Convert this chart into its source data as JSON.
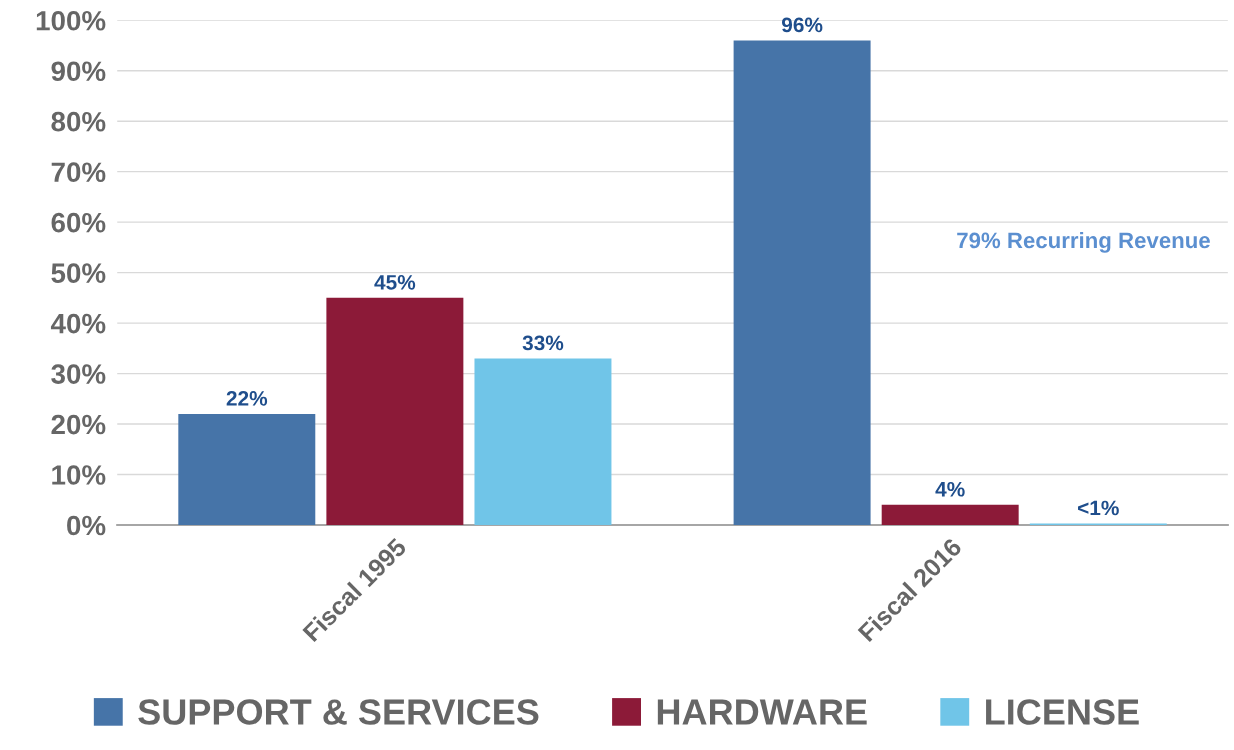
{
  "chart_data": {
    "type": "bar",
    "categories": [
      "Fiscal 1995",
      "Fiscal 2016"
    ],
    "series": [
      {
        "name": "SUPPORT & SERVICES",
        "color": "#4674a8",
        "values": [
          22,
          96
        ],
        "value_labels": [
          "22%",
          "96%"
        ]
      },
      {
        "name": "HARDWARE",
        "color": "#8c1a38",
        "values": [
          45,
          4
        ],
        "value_labels": [
          "45%",
          "4%"
        ]
      },
      {
        "name": "LICENSE",
        "color": "#70c5e8",
        "values": [
          33,
          0.3
        ],
        "value_labels": [
          "33%",
          "<1%"
        ]
      }
    ],
    "ylim": [
      0,
      100
    ],
    "yticks": [
      {
        "value": 0,
        "label": "0%"
      },
      {
        "value": 10,
        "label": "10%"
      },
      {
        "value": 20,
        "label": "20%"
      },
      {
        "value": 30,
        "label": "30%"
      },
      {
        "value": 40,
        "label": "40%"
      },
      {
        "value": 50,
        "label": "50%"
      },
      {
        "value": 60,
        "label": "60%"
      },
      {
        "value": 70,
        "label": "70%"
      },
      {
        "value": 80,
        "label": "80%"
      },
      {
        "value": 90,
        "label": "90%"
      },
      {
        "value": 100,
        "label": "100%"
      }
    ],
    "grid": "y",
    "legend": "bottom",
    "annotations": [
      "79% Recurring Revenue"
    ]
  }
}
